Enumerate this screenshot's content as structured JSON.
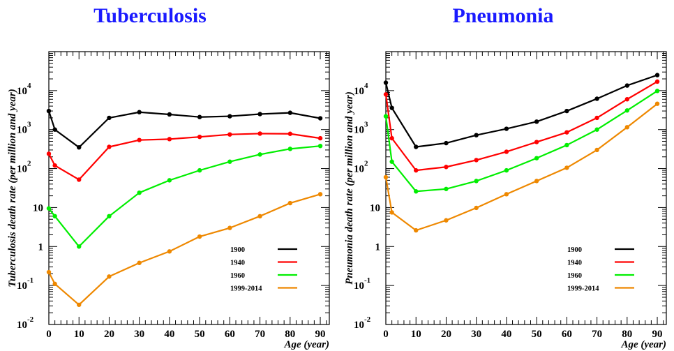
{
  "chart_data": [
    {
      "type": "line",
      "title": "Tuberculosis",
      "xlabel": "Age (year)",
      "ylabel": "Tuberculosis death rate (per million and year)",
      "yscale": "log",
      "xlim": [
        0,
        93
      ],
      "ylim": [
        0.01,
        100000
      ],
      "x_ticks": [
        "0",
        "10",
        "20",
        "30",
        "40",
        "50",
        "60",
        "70",
        "80",
        "90"
      ],
      "y_ticks": [
        {
          "base": "10",
          "exp": "-2"
        },
        {
          "base": "10",
          "exp": "-1"
        },
        {
          "base": "1",
          "exp": ""
        },
        {
          "base": "10",
          "exp": ""
        },
        {
          "base": "10",
          "exp": "2"
        },
        {
          "base": "10",
          "exp": "3"
        },
        {
          "base": "10",
          "exp": "4"
        }
      ],
      "legend_position": "bottom-right",
      "series": [
        {
          "name": "1900",
          "color": "#000000",
          "x": [
            0,
            2,
            10,
            20,
            30,
            40,
            50,
            60,
            70,
            80,
            90
          ],
          "y": [
            3000,
            1000,
            350,
            2000,
            2800,
            2450,
            2100,
            2200,
            2500,
            2700,
            1950
          ]
        },
        {
          "name": "1940",
          "color": "#ff0000",
          "x": [
            0,
            2,
            10,
            20,
            30,
            40,
            50,
            60,
            70,
            80,
            90
          ],
          "y": [
            240,
            120,
            52,
            360,
            540,
            570,
            650,
            750,
            790,
            780,
            600
          ]
        },
        {
          "name": "1960",
          "color": "#00ee00",
          "x": [
            0,
            2,
            10,
            20,
            30,
            40,
            50,
            60,
            70,
            80,
            90
          ],
          "y": [
            9.5,
            6,
            1,
            6,
            24,
            50,
            90,
            150,
            230,
            320,
            380
          ]
        },
        {
          "name": "1999-2014",
          "color": "#ee8800",
          "x": [
            0,
            2,
            10,
            20,
            30,
            40,
            50,
            60,
            70,
            80,
            90
          ],
          "y": [
            0.22,
            0.11,
            0.032,
            0.17,
            0.38,
            0.75,
            1.8,
            3,
            6,
            13,
            22
          ]
        }
      ]
    },
    {
      "type": "line",
      "title": "Pneumonia",
      "xlabel": "Age (year)",
      "ylabel": "Pneumonia death rate (per million and year)",
      "yscale": "log",
      "xlim": [
        0,
        93
      ],
      "ylim": [
        0.01,
        100000
      ],
      "x_ticks": [
        "0",
        "10",
        "20",
        "30",
        "40",
        "50",
        "60",
        "70",
        "80",
        "90"
      ],
      "y_ticks": [
        {
          "base": "10",
          "exp": "-2"
        },
        {
          "base": "10",
          "exp": "-1"
        },
        {
          "base": "1",
          "exp": ""
        },
        {
          "base": "10",
          "exp": ""
        },
        {
          "base": "10",
          "exp": "2"
        },
        {
          "base": "10",
          "exp": "3"
        },
        {
          "base": "10",
          "exp": "4"
        }
      ],
      "legend_position": "bottom-right",
      "series": [
        {
          "name": "1900",
          "color": "#000000",
          "x": [
            0,
            2,
            10,
            20,
            30,
            40,
            50,
            60,
            70,
            80,
            90
          ],
          "y": [
            16000,
            3600,
            360,
            450,
            720,
            1050,
            1600,
            3000,
            6200,
            13500,
            25000
          ]
        },
        {
          "name": "1940",
          "color": "#ff0000",
          "x": [
            0,
            2,
            10,
            20,
            30,
            40,
            50,
            60,
            70,
            80,
            90
          ],
          "y": [
            8000,
            600,
            90,
            110,
            165,
            270,
            480,
            850,
            2000,
            6000,
            17000
          ]
        },
        {
          "name": "1960",
          "color": "#00ee00",
          "x": [
            0,
            2,
            10,
            20,
            30,
            40,
            50,
            60,
            70,
            80,
            90
          ],
          "y": [
            2200,
            150,
            26,
            30,
            48,
            90,
            185,
            400,
            1000,
            3100,
            9800
          ]
        },
        {
          "name": "1999-2014",
          "color": "#ee8800",
          "x": [
            0,
            2,
            10,
            20,
            30,
            40,
            50,
            60,
            70,
            80,
            90
          ],
          "y": [
            60,
            7.5,
            2.6,
            4.7,
            9.8,
            22,
            48,
            105,
            300,
            1150,
            4600
          ]
        }
      ]
    }
  ]
}
